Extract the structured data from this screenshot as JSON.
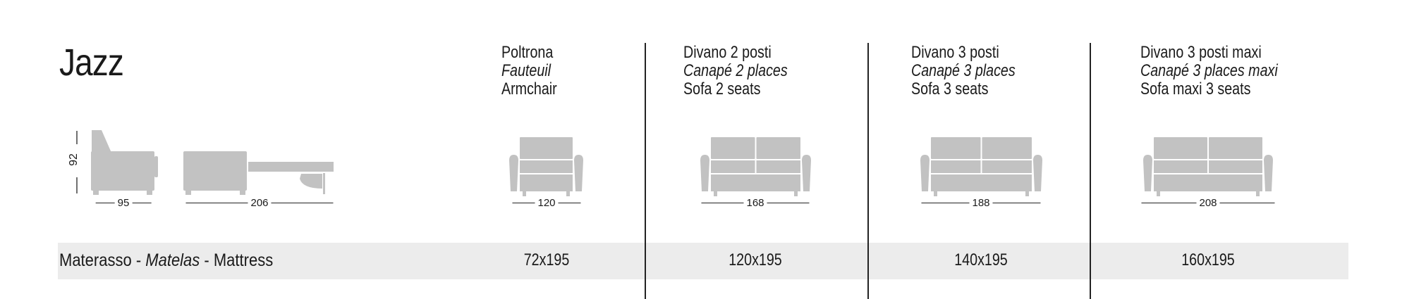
{
  "title": "Jazz",
  "side_view": {
    "height": "92",
    "depth": "95",
    "open_depth": "206"
  },
  "mattress_label": {
    "it": "Materasso",
    "fr": "Matelas",
    "en": "Mattress",
    "sep": " - "
  },
  "columns": [
    {
      "it": "Poltrona",
      "fr": "Fauteuil",
      "en": "Armchair",
      "width": "120",
      "mattress": "72x195",
      "icon": "armchair-icon"
    },
    {
      "it": "Divano 2 posti",
      "fr": "Canapé 2 places",
      "en": "Sofa 2 seats",
      "width": "168",
      "mattress": "120x195",
      "icon": "sofa-2-seats-icon"
    },
    {
      "it": "Divano 3 posti",
      "fr": "Canapé 3 places",
      "en": "Sofa 3 seats",
      "width": "188",
      "mattress": "140x195",
      "icon": "sofa-3-seats-icon"
    },
    {
      "it": "Divano 3 posti maxi",
      "fr": "Canapé 3 places maxi",
      "en": "Sofa maxi 3 seats",
      "width": "208",
      "mattress": "160x195",
      "icon": "sofa-maxi-3-seats-icon"
    }
  ],
  "colors": {
    "drawing": "#c2c2c2",
    "band": "#ececec",
    "text": "#1a1a1a"
  }
}
